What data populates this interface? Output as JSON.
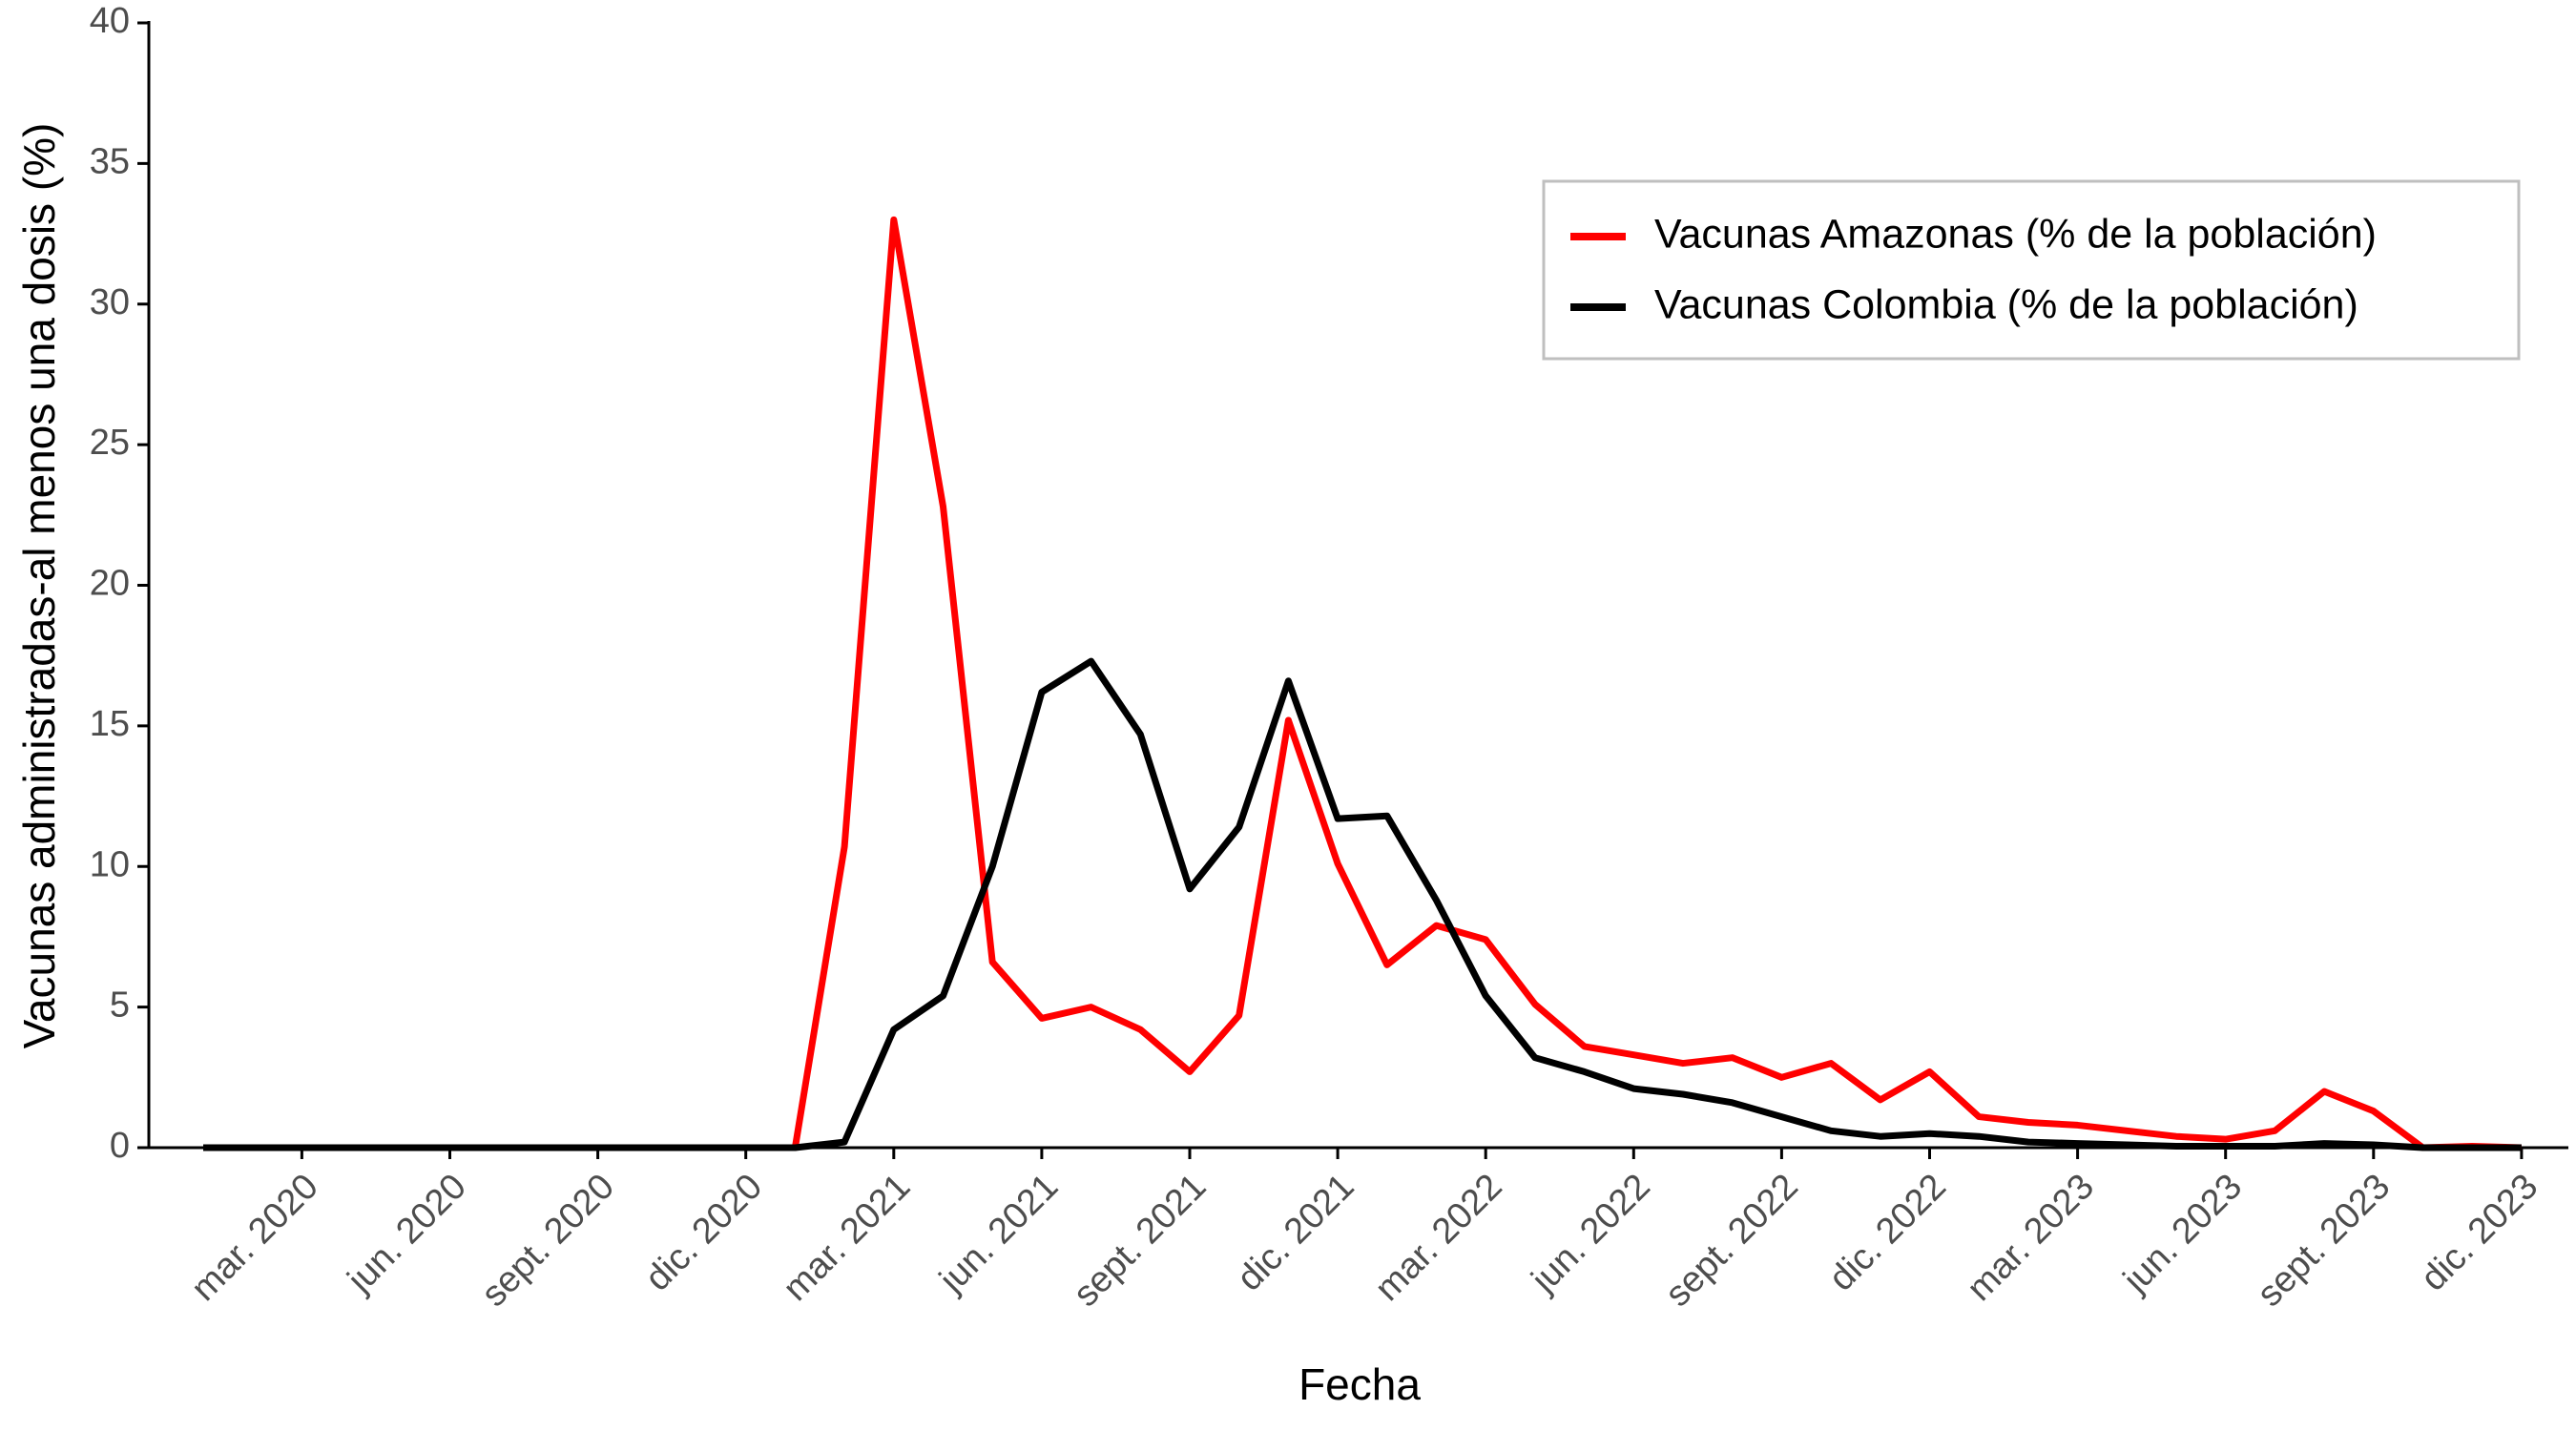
{
  "chart_data": {
    "type": "line",
    "x_label": "Fecha",
    "y_label": "Vacunas administradas-al menos una dosis (%)",
    "x": [
      "2020-01",
      "2020-02",
      "2020-03",
      "2020-04",
      "2020-05",
      "2020-06",
      "2020-07",
      "2020-08",
      "2020-09",
      "2020-10",
      "2020-11",
      "2020-12",
      "2021-01",
      "2021-02",
      "2021-03",
      "2021-04",
      "2021-05",
      "2021-06",
      "2021-07",
      "2021-08",
      "2021-09",
      "2021-10",
      "2021-11",
      "2021-12",
      "2022-01",
      "2022-02",
      "2022-03",
      "2022-04",
      "2022-05",
      "2022-06",
      "2022-07",
      "2022-08",
      "2022-09",
      "2022-10",
      "2022-11",
      "2022-12",
      "2023-01",
      "2023-02",
      "2023-03",
      "2023-04",
      "2023-05",
      "2023-06",
      "2023-07",
      "2023-08",
      "2023-09",
      "2023-10",
      "2023-11",
      "2023-12"
    ],
    "series": [
      {
        "name": "Vacunas Amazonas (% de la población)",
        "color": "#ff0000",
        "values": [
          0,
          0,
          0,
          0,
          0,
          0,
          0,
          0,
          0,
          0,
          0,
          0,
          0,
          10.7,
          33.0,
          22.8,
          6.6,
          4.6,
          5.0,
          4.2,
          2.7,
          4.7,
          15.2,
          10.1,
          6.5,
          7.9,
          7.4,
          5.1,
          3.6,
          3.3,
          3.0,
          3.2,
          2.5,
          3.0,
          1.7,
          2.7,
          1.1,
          0.9,
          0.8,
          0.6,
          0.4,
          0.3,
          0.6,
          2.0,
          1.3,
          0,
          0.05,
          0
        ]
      },
      {
        "name": "Vacunas Colombia (% de la población)",
        "color": "#000000",
        "values": [
          0,
          0,
          0,
          0,
          0,
          0,
          0,
          0,
          0,
          0,
          0,
          0,
          0,
          0.2,
          4.2,
          5.4,
          10.0,
          16.2,
          17.3,
          14.7,
          9.2,
          11.4,
          16.6,
          11.7,
          11.8,
          8.8,
          5.4,
          3.2,
          2.7,
          2.1,
          1.9,
          1.6,
          1.1,
          0.6,
          0.4,
          0.5,
          0.4,
          0.2,
          0.15,
          0.1,
          0.05,
          0.05,
          0.05,
          0.15,
          0.1,
          0,
          0,
          0
        ]
      }
    ],
    "xticks": [
      {
        "value": "2020-03",
        "label": "mar. 2020"
      },
      {
        "value": "2020-06",
        "label": "jun. 2020"
      },
      {
        "value": "2020-09",
        "label": "sept. 2020"
      },
      {
        "value": "2020-12",
        "label": "dic. 2020"
      },
      {
        "value": "2021-03",
        "label": "mar. 2021"
      },
      {
        "value": "2021-06",
        "label": "jun. 2021"
      },
      {
        "value": "2021-09",
        "label": "sept. 2021"
      },
      {
        "value": "2021-12",
        "label": "dic. 2021"
      },
      {
        "value": "2022-03",
        "label": "mar. 2022"
      },
      {
        "value": "2022-06",
        "label": "jun. 2022"
      },
      {
        "value": "2022-09",
        "label": "sept. 2022"
      },
      {
        "value": "2022-12",
        "label": "dic. 2022"
      },
      {
        "value": "2023-03",
        "label": "mar. 2023"
      },
      {
        "value": "2023-06",
        "label": "jun. 2023"
      },
      {
        "value": "2023-09",
        "label": "sept. 2023"
      },
      {
        "value": "2023-12",
        "label": "dic. 2023"
      }
    ],
    "ylim": [
      0,
      40
    ],
    "yticks": [
      0,
      5,
      10,
      15,
      20,
      25,
      30,
      35,
      40
    ],
    "grid": false,
    "legend": "upper right"
  }
}
